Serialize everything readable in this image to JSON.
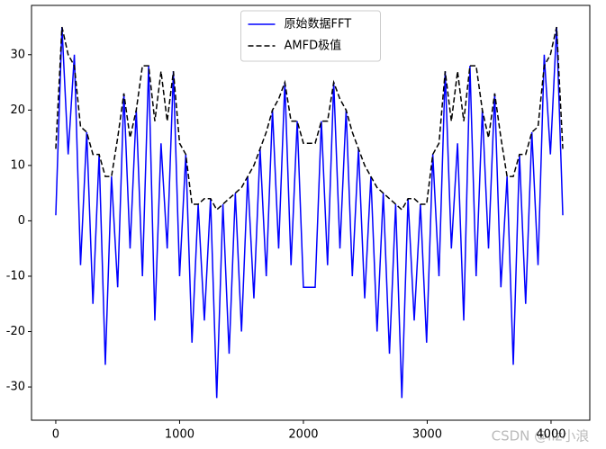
{
  "chart_data": {
    "type": "line",
    "xlim": [
      -196,
      4313
    ],
    "ylim": [
      -36,
      38.9
    ],
    "xticks": [
      0,
      1000,
      2000,
      3000,
      4000
    ],
    "yticks": [
      -30,
      -20,
      -10,
      0,
      10,
      20,
      30
    ],
    "legend": "upper center",
    "watermark": "CSDN @llz小浪",
    "series": [
      {
        "name": "原始数据FFT",
        "color": "#0000ff",
        "style": "solid",
        "x": [
          0,
          50,
          100,
          150,
          200,
          250,
          300,
          350,
          400,
          450,
          500,
          550,
          600,
          650,
          700,
          750,
          800,
          850,
          900,
          950,
          1000,
          1050,
          1100,
          1150,
          1200,
          1250,
          1300,
          1350,
          1400,
          1450,
          1500,
          1550,
          1600,
          1650,
          1700,
          1750,
          1800,
          1850,
          1900,
          1950,
          2000,
          2095,
          2145,
          2195,
          2245,
          2295,
          2345,
          2395,
          2445,
          2495,
          2545,
          2595,
          2645,
          2695,
          2745,
          2795,
          2845,
          2895,
          2945,
          2995,
          3045,
          3095,
          3145,
          3195,
          3245,
          3295,
          3345,
          3395,
          3445,
          3495,
          3545,
          3595,
          3645,
          3695,
          3745,
          3795,
          3845,
          3895,
          3945,
          3995,
          4045,
          4095
        ],
        "values": [
          1,
          35,
          12,
          30,
          -8,
          16,
          -15,
          12,
          -26,
          8,
          -12,
          23,
          -5,
          20,
          -10,
          28,
          -18,
          14,
          -5,
          27,
          -10,
          12,
          -22,
          3,
          -18,
          4,
          -32,
          3,
          -24,
          5,
          -20,
          8,
          -14,
          13,
          -10,
          20,
          -5,
          25,
          -8,
          18,
          -12,
          -12,
          18,
          -8,
          25,
          -5,
          20,
          -10,
          13,
          -14,
          8,
          -20,
          5,
          -24,
          3,
          -32,
          4,
          -18,
          3,
          -22,
          12,
          -10,
          27,
          -5,
          14,
          -18,
          28,
          -10,
          20,
          -5,
          23,
          -12,
          8,
          -26,
          12,
          -15,
          16,
          -8,
          30,
          12,
          35,
          1
        ]
      },
      {
        "name": "AMFD极值",
        "color": "#000000",
        "style": "dashed",
        "x": [
          0,
          50,
          100,
          150,
          200,
          250,
          300,
          350,
          400,
          450,
          500,
          550,
          600,
          650,
          700,
          750,
          800,
          850,
          900,
          950,
          1000,
          1050,
          1100,
          1150,
          1200,
          1250,
          1300,
          1350,
          1400,
          1450,
          1500,
          1550,
          1600,
          1650,
          1700,
          1750,
          1800,
          1850,
          1900,
          1950,
          2000,
          2095,
          2145,
          2195,
          2245,
          2295,
          2345,
          2395,
          2445,
          2495,
          2545,
          2595,
          2645,
          2695,
          2745,
          2795,
          2845,
          2895,
          2945,
          2995,
          3045,
          3095,
          3145,
          3195,
          3245,
          3295,
          3345,
          3395,
          3445,
          3495,
          3545,
          3595,
          3645,
          3695,
          3745,
          3795,
          3845,
          3895,
          3945,
          3995,
          4045,
          4095
        ],
        "values": [
          13,
          35,
          30,
          28,
          17,
          16,
          12,
          12,
          8,
          8,
          15,
          23,
          15,
          20,
          28,
          28,
          18,
          27,
          18,
          27,
          14,
          12,
          3,
          3,
          4,
          4,
          2,
          3,
          4,
          5,
          6,
          8,
          10,
          13,
          16,
          20,
          22,
          25,
          18,
          18,
          14,
          14,
          18,
          18,
          25,
          22,
          20,
          16,
          13,
          10,
          8,
          6,
          5,
          4,
          3,
          2,
          4,
          4,
          3,
          3,
          12,
          14,
          27,
          18,
          27,
          18,
          28,
          28,
          20,
          15,
          23,
          15,
          8,
          8,
          12,
          12,
          16,
          17,
          28,
          30,
          35,
          13
        ]
      }
    ]
  }
}
